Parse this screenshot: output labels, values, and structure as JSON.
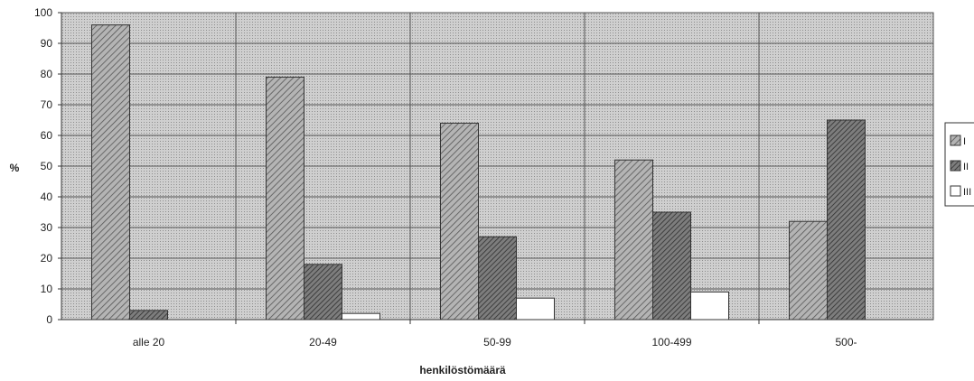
{
  "chart_data": {
    "type": "bar",
    "title": "",
    "xlabel": "henkilöstömäärä",
    "ylabel": "%",
    "ylim": [
      0,
      100
    ],
    "yticks": [
      0,
      10,
      20,
      30,
      40,
      50,
      60,
      70,
      80,
      90,
      100
    ],
    "categories": [
      "alle 20",
      "20-49",
      "50-99",
      "100-499",
      "500-"
    ],
    "grid": true,
    "legend_position": "right",
    "series": [
      {
        "name": "I",
        "pattern": "hatch-light",
        "color": "#9a9a9a",
        "values": [
          96,
          79,
          64,
          52,
          32
        ]
      },
      {
        "name": "II",
        "pattern": "hatch-dark",
        "color": "#6e6e6e",
        "values": [
          3,
          18,
          27,
          35,
          65
        ]
      },
      {
        "name": "III",
        "pattern": "white",
        "color": "#ffffff",
        "values": [
          0,
          2,
          7,
          9,
          0
        ]
      }
    ]
  }
}
